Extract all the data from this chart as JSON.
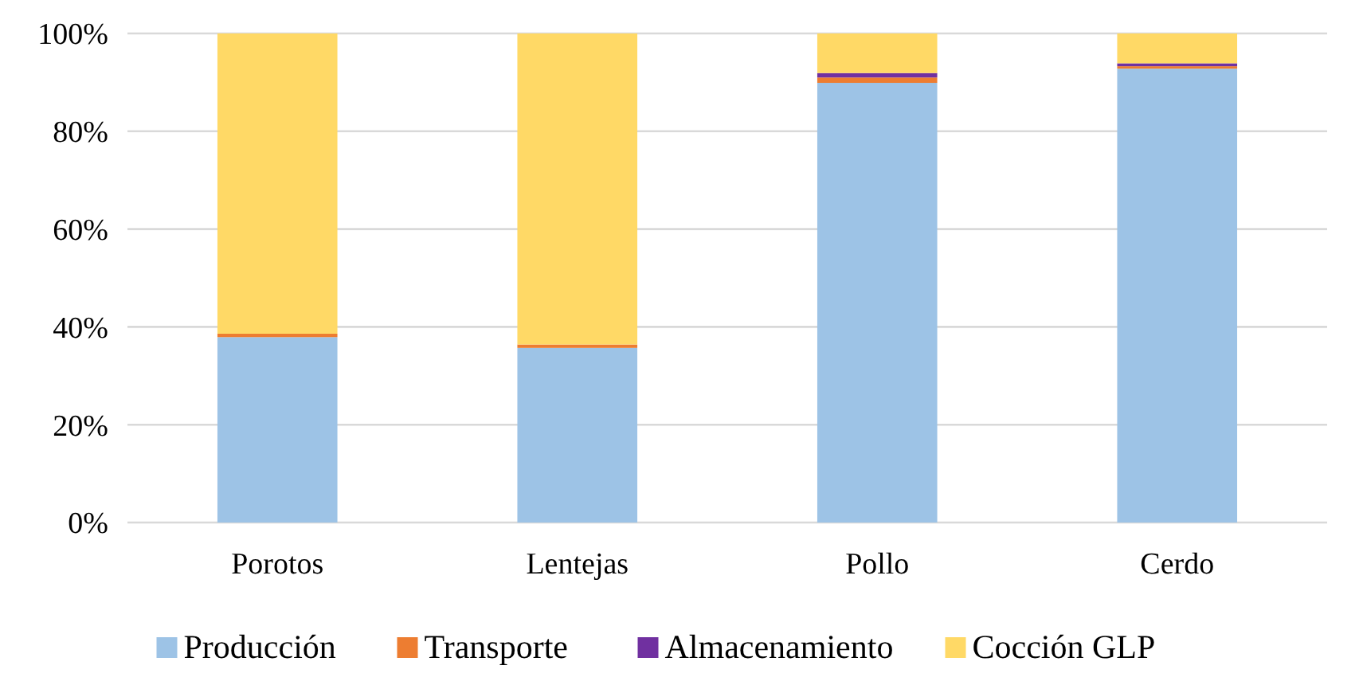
{
  "chart_data": {
    "type": "bar",
    "stacked": true,
    "categories": [
      "Porotos",
      "Lentejas",
      "Pollo",
      "Cerdo"
    ],
    "series": [
      {
        "name": "Producción",
        "color": "#9dc3e6",
        "values": [
          37.9,
          35.7,
          89.9,
          92.8
        ]
      },
      {
        "name": "Transporte",
        "color": "#ed7d31",
        "values": [
          0.7,
          0.7,
          1.1,
          0.5
        ]
      },
      {
        "name": "Almacenamiento",
        "color": "#7030a0",
        "values": [
          0,
          0,
          0.9,
          0.6
        ]
      },
      {
        "name": "Cocción GLP",
        "color": "#ffd966",
        "values": [
          61.4,
          63.6,
          8.1,
          6.1
        ]
      }
    ],
    "ylim": [
      0,
      100
    ],
    "yticks": [
      {
        "value": 0,
        "label": "0%"
      },
      {
        "value": 20,
        "label": "20%"
      },
      {
        "value": 40,
        "label": "40%"
      },
      {
        "value": 60,
        "label": "60%"
      },
      {
        "value": 80,
        "label": "80%"
      },
      {
        "value": 100,
        "label": "100%"
      }
    ],
    "grid": "y",
    "legend": "bottom"
  }
}
